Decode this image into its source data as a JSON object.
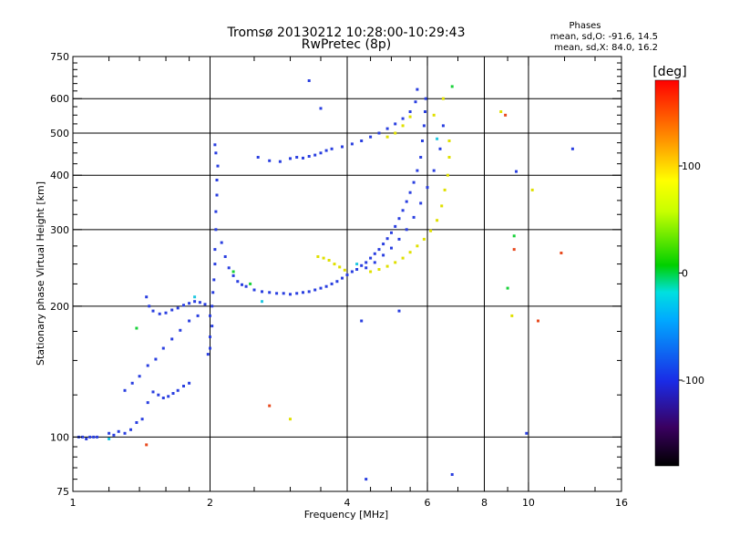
{
  "chart_data": {
    "type": "scatter",
    "title": "Tromsø 20130212 10:28:00-10:29:43",
    "subtitle": "RwPretec (8p)",
    "xlabel": "Frequency [MHz]",
    "ylabel": "Stationary phase Virtual Height [km]",
    "x_scale": "log",
    "y_scale": "log",
    "xlim": [
      1,
      16
    ],
    "ylim": [
      75,
      750
    ],
    "x_ticks": [
      1,
      2,
      4,
      6,
      8,
      10,
      16
    ],
    "x_tick_labels": [
      "1",
      "2",
      "4",
      "6",
      "8",
      "10",
      "16"
    ],
    "y_ticks": [
      75,
      100,
      200,
      300,
      400,
      500,
      600,
      750
    ],
    "y_tick_labels": [
      "75",
      "100",
      "200",
      "300",
      "400",
      "500",
      "600",
      "750"
    ],
    "grid_x": [
      2,
      4,
      6,
      8,
      10
    ],
    "grid_y": [
      100,
      200,
      300,
      400,
      500,
      600
    ],
    "grid": true,
    "phases_box": {
      "title": "Phases",
      "line1": "mean, sd,O: -91.6, 14.5",
      "line2": "mean, sd,X:  84.0, 16.2"
    },
    "colorbar": {
      "label": "[deg]",
      "range": [
        -180,
        180
      ],
      "ticks": [
        -100,
        0,
        100
      ],
      "tick_labels": [
        "-100",
        "0",
        "100"
      ]
    },
    "series": [
      {
        "color": "#2a3fe0",
        "mean_phase": -91.6,
        "points": [
          [
            1.03,
            100
          ],
          [
            1.05,
            100
          ],
          [
            1.07,
            99
          ],
          [
            1.09,
            100
          ],
          [
            1.11,
            100
          ],
          [
            1.13,
            100
          ],
          [
            1.2,
            102
          ],
          [
            1.23,
            101
          ],
          [
            1.26,
            103
          ],
          [
            1.3,
            102
          ],
          [
            1.34,
            104
          ],
          [
            1.38,
            108
          ],
          [
            1.42,
            110
          ],
          [
            1.46,
            120
          ],
          [
            1.5,
            127
          ],
          [
            1.54,
            125
          ],
          [
            1.58,
            123
          ],
          [
            1.62,
            124
          ],
          [
            1.66,
            126
          ],
          [
            1.7,
            128
          ],
          [
            1.75,
            131
          ],
          [
            1.8,
            133
          ],
          [
            1.3,
            128
          ],
          [
            1.35,
            133
          ],
          [
            1.4,
            138
          ],
          [
            1.46,
            146
          ],
          [
            1.52,
            151
          ],
          [
            1.58,
            160
          ],
          [
            1.65,
            168
          ],
          [
            1.72,
            176
          ],
          [
            1.8,
            185
          ],
          [
            1.88,
            190
          ],
          [
            1.45,
            210
          ],
          [
            1.47,
            200
          ],
          [
            1.5,
            195
          ],
          [
            1.55,
            192
          ],
          [
            1.6,
            193
          ],
          [
            1.65,
            196
          ],
          [
            1.7,
            198
          ],
          [
            1.75,
            201
          ],
          [
            1.8,
            203
          ],
          [
            1.85,
            205
          ],
          [
            1.9,
            204
          ],
          [
            1.95,
            202
          ],
          [
            1.98,
            155
          ],
          [
            2.0,
            160
          ],
          [
            2.0,
            170
          ],
          [
            2.02,
            180
          ],
          [
            2.0,
            190
          ],
          [
            2.02,
            200
          ],
          [
            2.03,
            215
          ],
          [
            2.04,
            230
          ],
          [
            2.05,
            250
          ],
          [
            2.05,
            270
          ],
          [
            2.06,
            300
          ],
          [
            2.06,
            330
          ],
          [
            2.07,
            360
          ],
          [
            2.07,
            390
          ],
          [
            2.08,
            420
          ],
          [
            2.06,
            450
          ],
          [
            2.05,
            470
          ],
          [
            2.12,
            280
          ],
          [
            2.16,
            260
          ],
          [
            2.2,
            245
          ],
          [
            2.25,
            235
          ],
          [
            2.3,
            228
          ],
          [
            2.35,
            224
          ],
          [
            2.4,
            222
          ],
          [
            2.5,
            218
          ],
          [
            2.6,
            216
          ],
          [
            2.7,
            215
          ],
          [
            2.8,
            214
          ],
          [
            2.9,
            214
          ],
          [
            3.0,
            213
          ],
          [
            3.1,
            214
          ],
          [
            3.2,
            215
          ],
          [
            3.3,
            216
          ],
          [
            3.4,
            218
          ],
          [
            3.5,
            220
          ],
          [
            3.6,
            222
          ],
          [
            3.7,
            225
          ],
          [
            3.8,
            228
          ],
          [
            3.9,
            232
          ],
          [
            4.0,
            236
          ],
          [
            4.1,
            240
          ],
          [
            4.2,
            243
          ],
          [
            4.3,
            248
          ],
          [
            4.4,
            252
          ],
          [
            4.5,
            258
          ],
          [
            4.6,
            264
          ],
          [
            4.7,
            270
          ],
          [
            4.8,
            278
          ],
          [
            4.9,
            286
          ],
          [
            5.0,
            295
          ],
          [
            5.1,
            305
          ],
          [
            5.2,
            318
          ],
          [
            5.3,
            332
          ],
          [
            5.4,
            348
          ],
          [
            5.5,
            365
          ],
          [
            5.6,
            385
          ],
          [
            5.7,
            410
          ],
          [
            5.8,
            440
          ],
          [
            5.85,
            480
          ],
          [
            5.9,
            520
          ],
          [
            5.93,
            560
          ],
          [
            5.95,
            600
          ],
          [
            4.4,
            245
          ],
          [
            4.6,
            252
          ],
          [
            4.8,
            262
          ],
          [
            5.0,
            272
          ],
          [
            5.2,
            285
          ],
          [
            5.4,
            300
          ],
          [
            5.6,
            320
          ],
          [
            5.8,
            345
          ],
          [
            6.0,
            375
          ],
          [
            6.2,
            410
          ],
          [
            6.4,
            460
          ],
          [
            6.5,
            520
          ],
          [
            2.55,
            440
          ],
          [
            2.7,
            432
          ],
          [
            2.85,
            430
          ],
          [
            3.0,
            437
          ],
          [
            3.1,
            440
          ],
          [
            3.2,
            438
          ],
          [
            3.3,
            442
          ],
          [
            3.4,
            445
          ],
          [
            3.5,
            450
          ],
          [
            3.6,
            456
          ],
          [
            3.7,
            460
          ],
          [
            3.9,
            465
          ],
          [
            4.1,
            472
          ],
          [
            4.3,
            480
          ],
          [
            4.5,
            490
          ],
          [
            4.7,
            500
          ],
          [
            4.9,
            512
          ],
          [
            5.1,
            525
          ],
          [
            5.3,
            540
          ],
          [
            5.5,
            560
          ],
          [
            5.65,
            590
          ],
          [
            5.7,
            630
          ],
          [
            3.3,
            660
          ],
          [
            3.5,
            570
          ],
          [
            4.3,
            185
          ],
          [
            5.2,
            195
          ],
          [
            4.4,
            80
          ],
          [
            6.8,
            82
          ],
          [
            9.4,
            408
          ],
          [
            9.9,
            102
          ],
          [
            12.5,
            460
          ]
        ]
      },
      {
        "color": "#e0e000",
        "mean_phase": 84.0,
        "points": [
          [
            3.45,
            260
          ],
          [
            3.55,
            258
          ],
          [
            3.65,
            255
          ],
          [
            3.75,
            250
          ],
          [
            3.85,
            246
          ],
          [
            3.95,
            242
          ],
          [
            4.5,
            240
          ],
          [
            4.7,
            243
          ],
          [
            4.9,
            247
          ],
          [
            5.1,
            252
          ],
          [
            5.3,
            258
          ],
          [
            5.5,
            266
          ],
          [
            5.7,
            275
          ],
          [
            5.9,
            285
          ],
          [
            6.1,
            298
          ],
          [
            6.3,
            315
          ],
          [
            6.45,
            340
          ],
          [
            6.55,
            370
          ],
          [
            6.65,
            400
          ],
          [
            6.7,
            440
          ],
          [
            6.7,
            480
          ],
          [
            4.9,
            490
          ],
          [
            5.1,
            500
          ],
          [
            5.3,
            520
          ],
          [
            5.5,
            545
          ],
          [
            6.2,
            550
          ],
          [
            6.5,
            600
          ],
          [
            8.7,
            560
          ],
          [
            10.2,
            370
          ],
          [
            9.2,
            190
          ],
          [
            3.0,
            110
          ]
        ]
      },
      {
        "color": "#19d23a",
        "mean_phase": 0,
        "points": [
          [
            1.38,
            178
          ],
          [
            2.25,
            240
          ],
          [
            2.45,
            225
          ],
          [
            6.8,
            640
          ],
          [
            9.0,
            220
          ],
          [
            9.3,
            290
          ]
        ]
      },
      {
        "color": "#e84a1e",
        "mean_phase": 150,
        "points": [
          [
            1.45,
            96
          ],
          [
            2.7,
            118
          ],
          [
            9.3,
            270
          ],
          [
            10.5,
            185
          ],
          [
            11.8,
            265
          ],
          [
            8.9,
            550
          ]
        ]
      },
      {
        "color": "#20c8e0",
        "mean_phase": -30,
        "points": [
          [
            1.2,
            99
          ],
          [
            2.6,
            205
          ],
          [
            4.2,
            250
          ],
          [
            6.3,
            485
          ],
          [
            1.85,
            210
          ]
        ]
      }
    ]
  }
}
